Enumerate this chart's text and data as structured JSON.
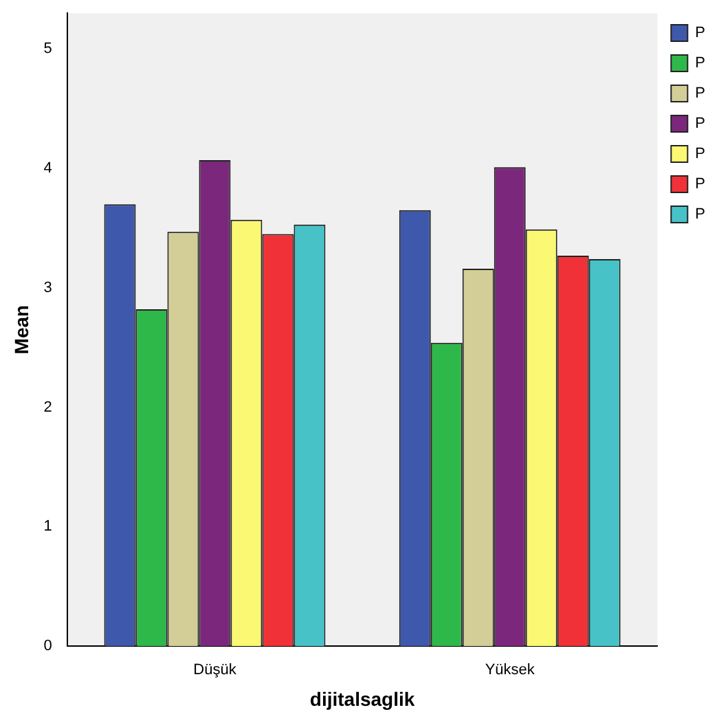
{
  "chart_data": {
    "type": "bar",
    "xlabel": "dijitalsaglik",
    "ylabel": "Mean",
    "categories": [
      "Düşük",
      "Yüksek"
    ],
    "series": [
      {
        "name": "P",
        "color": "#3e58ac",
        "values": [
          3.7,
          3.65
        ]
      },
      {
        "name": "P",
        "color": "#2fb84a",
        "values": [
          2.82,
          2.54
        ]
      },
      {
        "name": "P",
        "color": "#d3ce97",
        "values": [
          3.47,
          3.16
        ]
      },
      {
        "name": "P",
        "color": "#7b287c",
        "values": [
          4.07,
          4.01
        ]
      },
      {
        "name": "P",
        "color": "#fbf873",
        "values": [
          3.57,
          3.49
        ]
      },
      {
        "name": "P",
        "color": "#f03238",
        "values": [
          3.45,
          3.27
        ]
      },
      {
        "name": "P",
        "color": "#47c3c8",
        "values": [
          3.53,
          3.24
        ]
      }
    ],
    "ylim": [
      0,
      5.3
    ],
    "yticks": [
      0,
      1,
      2,
      3,
      4,
      5
    ],
    "grid": false,
    "legend": "top right"
  }
}
